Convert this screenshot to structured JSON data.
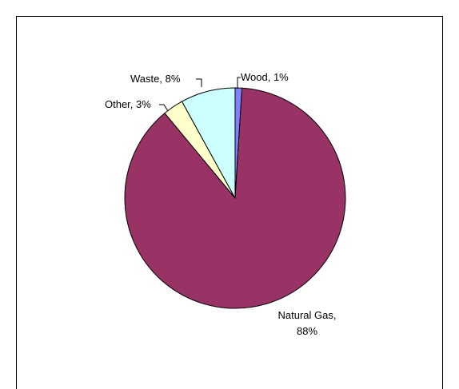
{
  "chart_data": {
    "type": "pie",
    "title": "",
    "start_angle_deg": 0,
    "direction": "clockwise",
    "slices": [
      {
        "label": "Wood",
        "value": 1,
        "label_text": "Wood, 1%",
        "color": "#8080ff",
        "label_lines": [
          "Wood, 1%"
        ]
      },
      {
        "label": "Natural Gas",
        "value": 88,
        "label_text": "Natural Gas, 88%",
        "color": "#993366",
        "label_lines": [
          "Natural Gas,",
          "88%"
        ]
      },
      {
        "label": "Other",
        "value": 3,
        "label_text": "Other, 3%",
        "color": "#ffffcc",
        "label_lines": [
          "Other, 3%"
        ]
      },
      {
        "label": "Waste",
        "value": 8,
        "label_text": "Waste, 8%",
        "color": "#ccffff",
        "label_lines": [
          "Waste, 8%"
        ]
      }
    ],
    "legend": "none",
    "slice_outline_color": "#000000",
    "frame_border_color": "#000000"
  }
}
